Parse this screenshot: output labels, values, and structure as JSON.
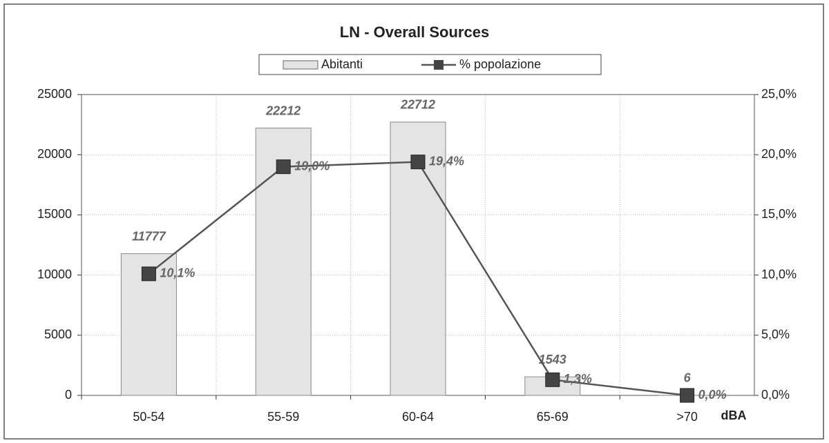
{
  "chart_data": {
    "type": "bar",
    "title": "LN - Overall Sources",
    "categories": [
      "50-54",
      "55-59",
      "60-64",
      "65-69",
      ">70"
    ],
    "x_label": "dBA",
    "series": [
      {
        "name": "Abitanti",
        "type": "bar",
        "color": "#e4e4e4",
        "values": [
          11777,
          22212,
          22712,
          1543,
          6
        ]
      },
      {
        "name": "% popolazione",
        "type": "line",
        "axis": "y2",
        "color": "#555555",
        "values": [
          10.1,
          19.0,
          19.4,
          1.3,
          0.0
        ],
        "value_labels": [
          "10,1%",
          "19,0%",
          "19,4%",
          "1,3%",
          "0,0%"
        ]
      }
    ],
    "ylim": [
      0,
      25000
    ],
    "yticks": [
      0,
      5000,
      10000,
      15000,
      20000,
      25000
    ],
    "y2lim": [
      0,
      25
    ],
    "y2ticks": [
      {
        "value": 0,
        "label": "0,0%"
      },
      {
        "value": 5,
        "label": "5,0%"
      },
      {
        "value": 10,
        "label": "10,0%"
      },
      {
        "value": 15,
        "label": "15,0%"
      },
      {
        "value": 20,
        "label": "20,0%"
      },
      {
        "value": 25,
        "label": "25,0%"
      }
    ],
    "grid": true,
    "legend": "top"
  }
}
